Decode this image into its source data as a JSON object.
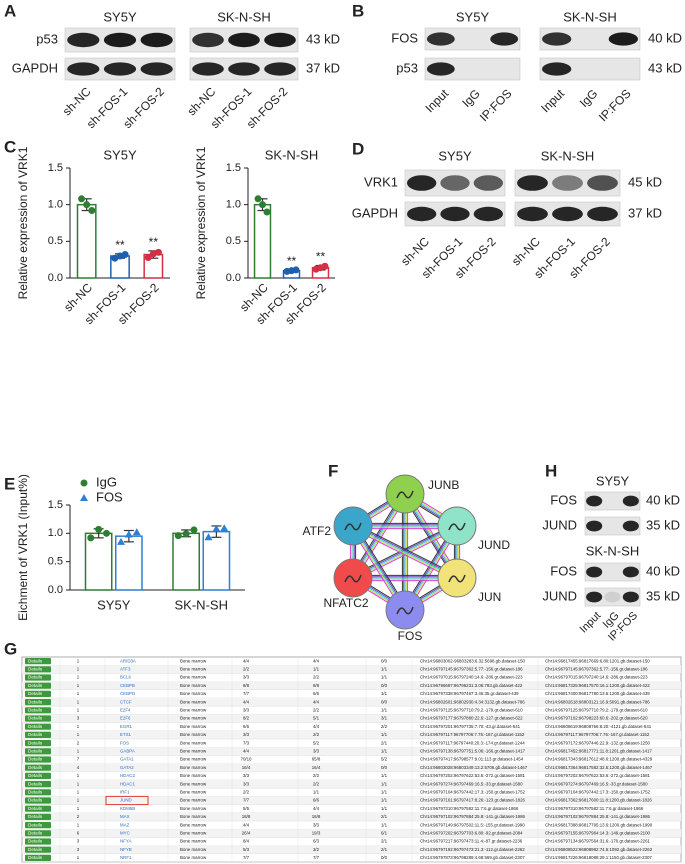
{
  "panels": {
    "A": {
      "label": "A",
      "titles": [
        "SY5Y",
        "SK-N-SH"
      ],
      "rows": [
        {
          "name": "p53",
          "size": "43 kD"
        },
        {
          "name": "GAPDH",
          "size": "37 kD"
        }
      ],
      "lanes": [
        "sh-NC",
        "sh-FOS-1",
        "sh-FOS-2"
      ]
    },
    "B": {
      "label": "B",
      "titles": [
        "SY5Y",
        "SK-N-SH"
      ],
      "rows": [
        {
          "name": "FOS",
          "size": "40 kD"
        },
        {
          "name": "p53",
          "size": "43 kD"
        }
      ],
      "lanes": [
        "Input",
        "IgG",
        "IP:FOS"
      ]
    },
    "D": {
      "label": "D",
      "titles": [
        "SY5Y",
        "SK-N-SH"
      ],
      "rows": [
        {
          "name": "VRK1",
          "size": "45 kD"
        },
        {
          "name": "GAPDH",
          "size": "37 kD"
        }
      ],
      "lanes": [
        "sh-NC",
        "sh-FOS-1",
        "sh-FOS-2"
      ]
    },
    "F": {
      "label": "F",
      "nodes": [
        "JUNB",
        "JUND",
        "JUN",
        "FOS",
        "NFATC2",
        "ATF2"
      ]
    },
    "H": {
      "label": "H",
      "blocks": [
        {
          "title": "SY5Y",
          "rows": [
            {
              "name": "FOS",
              "size": "40 kD"
            },
            {
              "name": "JUND",
              "size": "35 kD"
            }
          ]
        },
        {
          "title": "SK-N-SH",
          "rows": [
            {
              "name": "FOS",
              "size": "40 kD"
            },
            {
              "name": "JUND",
              "size": "35 kD"
            }
          ]
        }
      ],
      "lanes": [
        "Input",
        "IgG",
        "IP:FOS"
      ]
    }
  },
  "chart_data": [
    {
      "type": "bar",
      "panel_label": "C",
      "title": "SY5Y",
      "ylabel": "Relative expression of VRK1",
      "categories": [
        "sh-NC",
        "sh-FOS-1",
        "sh-FOS-2"
      ],
      "values": [
        1.0,
        0.3,
        0.32
      ],
      "errors": [
        0.08,
        0.03,
        0.05
      ],
      "points": [
        [
          1.08,
          1.0,
          0.92
        ],
        [
          0.27,
          0.3,
          0.32
        ],
        [
          0.28,
          0.33,
          0.35
        ]
      ],
      "colors": [
        "#2e7d32",
        "#1f5fb0",
        "#d32f45"
      ],
      "annotations": [
        null,
        "**",
        "**"
      ],
      "ylim": [
        0,
        1.5
      ],
      "yticks": [
        {
          "value": 0,
          "label": "0.0"
        },
        {
          "value": 0.5,
          "label": "0.5"
        },
        {
          "value": 1,
          "label": "1.0"
        },
        {
          "value": 1.5,
          "label": "1.5"
        }
      ]
    },
    {
      "type": "bar",
      "title": "SK-N-SH",
      "ylabel": "Relative expression of VRK1",
      "categories": [
        "sh-NC",
        "sh-FOS-1",
        "sh-FOS-2"
      ],
      "values": [
        1.0,
        0.1,
        0.14
      ],
      "errors": [
        0.08,
        0.01,
        0.03
      ],
      "points": [
        [
          1.08,
          1.0,
          0.9
        ],
        [
          0.09,
          0.1,
          0.11
        ],
        [
          0.12,
          0.14,
          0.16
        ]
      ],
      "colors": [
        "#2e7d32",
        "#1f5fb0",
        "#d32f45"
      ],
      "annotations": [
        null,
        "**",
        "**"
      ],
      "ylim": [
        0,
        1.5
      ],
      "yticks": [
        {
          "value": 0,
          "label": "0.0"
        },
        {
          "value": 0.5,
          "label": "0.5"
        },
        {
          "value": 1,
          "label": "1.0"
        },
        {
          "value": 1.5,
          "label": "1.5"
        }
      ]
    },
    {
      "type": "bar",
      "panel_label": "E",
      "ylabel": "Eichment of VRK1 (Input%)",
      "legend": "top-left",
      "categories": [
        "SY5Y",
        "SK-N-SH"
      ],
      "series": [
        {
          "name": "IgG",
          "color": "#2e7d32",
          "marker": "circle",
          "values": [
            1.0,
            1.0
          ],
          "errors": [
            0.08,
            0.06
          ],
          "points": [
            [
              0.92,
              1.07,
              1.0
            ],
            [
              0.96,
              0.99,
              1.06
            ]
          ]
        },
        {
          "name": "FOS",
          "color": "#2f7fd0",
          "marker": "triangle",
          "values": [
            0.95,
            1.03
          ],
          "errors": [
            0.1,
            0.1
          ],
          "points": [
            [
              0.85,
              0.98,
              1.02
            ],
            [
              0.93,
              1.08,
              1.09
            ]
          ]
        }
      ],
      "ylim": [
        0,
        1.5
      ],
      "yticks": [
        {
          "value": 0,
          "label": "0.0"
        },
        {
          "value": 0.5,
          "label": "0.5"
        },
        {
          "value": 1,
          "label": "1.0"
        },
        {
          "value": 1.5,
          "label": "1.5"
        }
      ]
    }
  ],
  "table": {
    "label": "G",
    "details": "Details",
    "rows": [
      [
        "1",
        "ARID3A",
        "Bone marrow",
        "4/4",
        "4/4",
        "0/0",
        "Chr14:96803002-96803283:6.32:5698.gb.dataset-150",
        "Chr14:96817455:96817669:6.80:1201.gb.dataset-150"
      ],
      [
        "1",
        "ATF3",
        "Bone marrow",
        "2/2",
        "1/1",
        "1/1",
        "Chr14:96797145:96797362:5.77:-156.gr.dataset-186",
        "Chr14:96797145:96797362:5.77:-156.gr.dataset-186"
      ],
      [
        "1",
        "BCL6",
        "Bone marrow",
        "3/3",
        "2/2",
        "1/1",
        "Chr14:96797015:96797240:14.6:-286.gr.dataset-223",
        "Chr14:96797015:96797240:14.6:-286.gr.dataset-223"
      ],
      [
        "1",
        "CEBPB",
        "Bone marrow",
        "8/8",
        "8/8",
        "0/0",
        "Chr14:96796697:96796231:3.06:793.gb.dataset-422",
        "Chr14:96817325:96817570:16.1:1200.gb.dataset-422"
      ],
      [
        "1",
        "CEBPD",
        "Bone marrow",
        "7/7",
        "6/6",
        "1/1",
        "Chr14:96797338:96797467:3.46:35.gr.dataset-439",
        "Chr14:96817400:96817780:13.5:1200.gb.dataset-439"
      ],
      [
        "1",
        "CTCF",
        "Bone marrow",
        "4/4",
        "4/4",
        "0/0",
        "Chr14:96802601:96802930:4.34:3132.gb.dataset-786",
        "Chr14:96802618:96803121:16.9:5091.gb.dataset-786"
      ],
      [
        "1",
        "E2F4",
        "Bone marrow",
        "3/3",
        "2/2",
        "1/1",
        "Chr14:96797125:96797710:79.2:-179.gr.dataset-610",
        "Chr14:96797125:96797710:79.2:-179.gr.dataset-610"
      ],
      [
        "3",
        "E2F6",
        "Bone marrow",
        "8/2",
        "5/1",
        "3/1",
        "Chr14:96797177:96797880:22.6:-127.gr.dataset-622",
        "Chr14:96797102:96798223:60.6:-202.gr.dataset-620"
      ],
      [
        "1",
        "EGR1",
        "Bone marrow",
        "6/6",
        "4/4",
        "2/2",
        "Chr14:96797201:96797735:7.70:-43.gr.dataset-641",
        "Chr14:96808619:96808766:8.20:-4121.gb.dataset-641"
      ],
      [
        "1",
        "ETS1",
        "Bone marrow",
        "3/3",
        "2/2",
        "1/1",
        "Chr14:96797117:96797706:7.75:-167.gr.dataset-1152",
        "Chr14:96797117:96797706:7.75:-167.gr.dataset-1152"
      ],
      [
        "2",
        "FOS",
        "Bone marrow",
        "7/3",
        "5/2",
        "2/1",
        "Chr14:96797117:96797440:20.3:-174.gr.dataset-1244",
        "Chr14:96797172:96797446:22.9:-132.gr.dataset-1250"
      ],
      [
        "1",
        "GABPA",
        "Bone marrow",
        "4/4",
        "3/3",
        "1/1",
        "Chr14:96797138:96797751:5.06:-166.gr.dataset-1417",
        "Chr14:96817452:96817771:11.8:1201.gb.dataset-1417"
      ],
      [
        "7",
        "GATA1",
        "Bone marrow",
        "70/10",
        "65/8",
        "5/2",
        "Chr14:96797417:96798577:9.01:113.gr.dataset-1454",
        "Chr14:96817343:96817612:48.6:1200.gb.dataset-4329"
      ],
      [
        "4",
        "GATA2",
        "Bone marrow",
        "16/4",
        "16/4",
        "0/0",
        "Chr14:96803028:96803349:13.2:5706.gb.dataset-1467",
        "Chr14:96817364:96817582:32.5:1200.gb.dataset-1467"
      ],
      [
        "1",
        "HDAC2",
        "Bone marrow",
        "3/3",
        "2/2",
        "1/1",
        "Chr14:96797202:96797622:53.6:-272.gr.dataset-1581",
        "Chr14:96797202:96797622:53.6:-272.gr.dataset-1581"
      ],
      [
        "1",
        "HDAC1",
        "Bone marrow",
        "3/3",
        "2/2",
        "1/1",
        "Chr14:96797274:96797469:16.5:-33.gr.dataset-1580",
        "Chr14:96797274:96797469:16.5:-33.gr.dataset-1580"
      ],
      [
        "1",
        "IRF1",
        "Bone marrow",
        "2/2",
        "1/1",
        "1/1",
        "Chr14:96797104:96797442:17.3:-150.gr.dataset-1752",
        "Chr14:96797104:96797442:17.3:-150.gr.dataset-1752"
      ],
      [
        "1",
        "JUND",
        "Bone marrow",
        "7/7",
        "6/6",
        "1/1",
        "Chr14:96797161:96797417:8.26:-123.gr.dataset-1826",
        "Chr14:96817362:96817600:11.8:1200.gb.dataset-1826"
      ],
      [
        "1",
        "KDM5B",
        "Bone marrow",
        "5/5",
        "4/4",
        "1/1",
        "Chr14:96797310:96797582:11.7:6.gr.dataset-1866",
        "Chr14:96797310:96797582:11.7:6.gr.dataset-1866"
      ],
      [
        "2",
        "MAX",
        "Bone marrow",
        "18/8",
        "16/8",
        "2/1",
        "Chr14:96797102:96797884:25.8:-141.gr.dataset-1986",
        "Chr14:96797102:96797884:25.8:-141.gr.dataset-1986"
      ],
      [
        "1",
        "MAZ",
        "Bone marrow",
        "4/4",
        "3/3",
        "1/1",
        "Chr14:96797149:96797502:11.5:-155.gr.dataset-1990",
        "Chr14:96817388:96817795:13.6:1200.gb.dataset-1990"
      ],
      [
        "6",
        "MYC",
        "Bone marrow",
        "26/4",
        "19/3",
        "6/1",
        "Chr14:96797202:96797703:6.80:-92.gr.dataset-2084",
        "Chr14:96797155:96797964:14.3:-149.gr.dataset-2100"
      ],
      [
        "3",
        "NFYA",
        "Bone marrow",
        "8/4",
        "6/3",
        "2/1",
        "Chr14:96797217:96797473:11.4:-87.gr.dataset-2236",
        "Chr14:96797134:96797564:31.6:-170.gr.dataset-2261"
      ],
      [
        "3",
        "NFYB",
        "Bone marrow",
        "5/3",
        "3/2",
        "2/1",
        "Chr14:96797192:96797473:21.3:-112.gr.dataset-2262",
        "Chr14:96808522:96808982:74.5:1092.gb.dataset-2262"
      ],
      [
        "1",
        "NRF1",
        "Bone marrow",
        "7/7",
        "7/7",
        "0/0",
        "Chr14:96797873:96798289:4.68:569.gb.dataset-2307",
        "Chr14:96817226:96818088:29.1:1150.gb.dataset-2307"
      ]
    ]
  }
}
